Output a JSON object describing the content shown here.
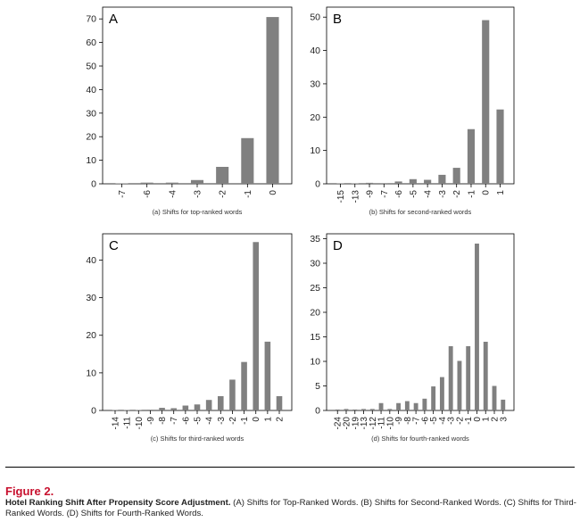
{
  "figure": {
    "label": "Figure 2.",
    "caption_title": "Hotel Ranking Shift After Propensity Score Adjustment.",
    "caption_text": " (A) Shifts for Top-Ranked Words. (B) Shifts for Second-Ranked Words. (C) Shifts for Third-Ranked Words. (D) Shifts for Fourth-Ranked Words."
  },
  "chart_data": [
    {
      "type": "bar",
      "panel_letter": "A",
      "xlabel": "(a) Shifts for top-ranked words",
      "ylabel": "",
      "ylim": [
        0,
        75
      ],
      "yticks": [
        0,
        10,
        20,
        30,
        40,
        50,
        60,
        70
      ],
      "categories": [
        "-7",
        "-6",
        "-4",
        "-3",
        "-2",
        "-1",
        "0"
      ],
      "values": [
        0.2,
        0.5,
        0.5,
        1.6,
        7.2,
        19.4,
        70.8
      ],
      "bar_color": "#808080",
      "grid": false
    },
    {
      "type": "bar",
      "panel_letter": "B",
      "xlabel": "(b) Shifts for second-ranked words",
      "ylabel": "",
      "ylim": [
        0,
        53
      ],
      "yticks": [
        0,
        10,
        20,
        30,
        40,
        50
      ],
      "categories": [
        "-15",
        "-13",
        "-9",
        "-7",
        "-6",
        "-5",
        "-4",
        "-3",
        "-2",
        "-1",
        "0",
        "1"
      ],
      "values": [
        0.1,
        0.1,
        0.3,
        0.2,
        0.7,
        1.4,
        1.2,
        2.7,
        4.8,
        16.4,
        49.1,
        22.3
      ],
      "bar_color": "#808080",
      "grid": false
    },
    {
      "type": "bar",
      "panel_letter": "C",
      "xlabel": "(c) Shifts for third-ranked words",
      "ylabel": "",
      "ylim": [
        0,
        47
      ],
      "yticks": [
        0,
        10,
        20,
        30,
        40
      ],
      "categories": [
        "-14",
        "-11",
        "-10",
        "-9",
        "-8",
        "-7",
        "-6",
        "-5",
        "-4",
        "-3",
        "-2",
        "-1",
        "0",
        "1",
        "2"
      ],
      "values": [
        0.1,
        0.1,
        0.1,
        0.2,
        0.7,
        0.6,
        1.3,
        1.6,
        2.8,
        3.8,
        8.2,
        12.9,
        44.8,
        18.3,
        3.8
      ],
      "bar_color": "#808080",
      "grid": false
    },
    {
      "type": "bar",
      "panel_letter": "D",
      "xlabel": "(d) Shifts for fourth-ranked words",
      "ylabel": "",
      "ylim": [
        0,
        36
      ],
      "yticks": [
        0,
        5,
        10,
        15,
        20,
        25,
        30,
        35
      ],
      "categories": [
        "-24",
        "-20",
        "-19",
        "-13",
        "-12",
        "-11",
        "-10",
        "-9",
        "-8",
        "-7",
        "-6",
        "-5",
        "-4",
        "-3",
        "-2",
        "-1",
        "0",
        "1",
        "2",
        "3"
      ],
      "values": [
        0.2,
        0.3,
        0.2,
        0.3,
        0.3,
        1.5,
        0.3,
        1.5,
        1.9,
        1.5,
        2.4,
        4.9,
        6.8,
        13.1,
        10.1,
        13.1,
        34.0,
        14.0,
        5.0,
        2.2
      ],
      "bar_color": "#808080",
      "grid": false
    }
  ]
}
